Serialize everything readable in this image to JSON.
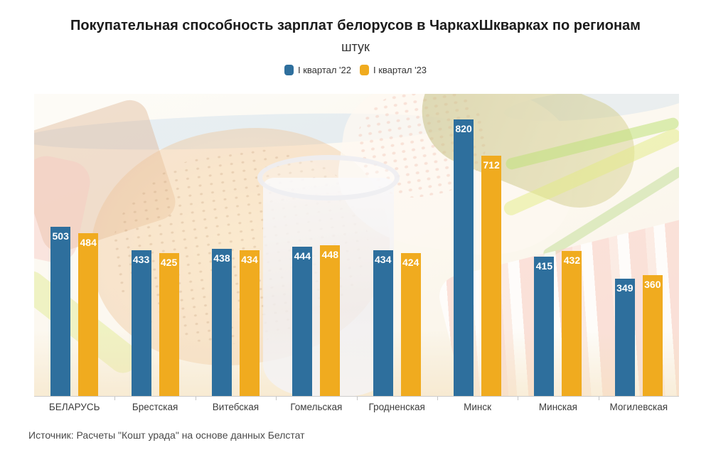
{
  "page": {
    "title": "Покупательная способность зарплат белорусов в ЧаркахШкварках по регионам",
    "subtitle": "штук",
    "source": "Источник: Расчеты \"Кошт урада\" на основе данных Белстат"
  },
  "legend": {
    "items": [
      {
        "label": "I квартал '22",
        "color": "#2e6f9d"
      },
      {
        "label": "I квартал '23",
        "color": "#f0ab1f"
      }
    ]
  },
  "colors": {
    "series_2022": "#2e6f9d",
    "series_2023": "#f0ab1f",
    "axis_line": "#cccccc",
    "title_text": "#1c1c1c",
    "category_text": "#3d3d3d",
    "bar_value_text": "#ffffff"
  },
  "chart_data": {
    "type": "bar",
    "grouped": true,
    "title": "Покупательная способность зарплат белорусов в ЧаркахШкварках по регионам",
    "subtitle_unit": "штук",
    "categories": [
      "БЕЛАРУСЬ",
      "Брестская",
      "Витебская",
      "Гомельская",
      "Гродненская",
      "Минск",
      "Минская",
      "Могилевская"
    ],
    "series": [
      {
        "name": "I квартал '22",
        "color": "#2e6f9d",
        "values": [
          503,
          433,
          438,
          444,
          434,
          820,
          415,
          349
        ]
      },
      {
        "name": "I квартал '23",
        "color": "#f0ab1f",
        "values": [
          484,
          425,
          434,
          448,
          424,
          712,
          432,
          360
        ]
      }
    ],
    "xlabel": "",
    "ylabel": "",
    "ylim": [
      0,
      896
    ],
    "grid": false,
    "value_labels": "inside-top",
    "legend_position": "top-center",
    "background": "washed-out photo of bread, salo, pickle, green onion and a glass"
  }
}
